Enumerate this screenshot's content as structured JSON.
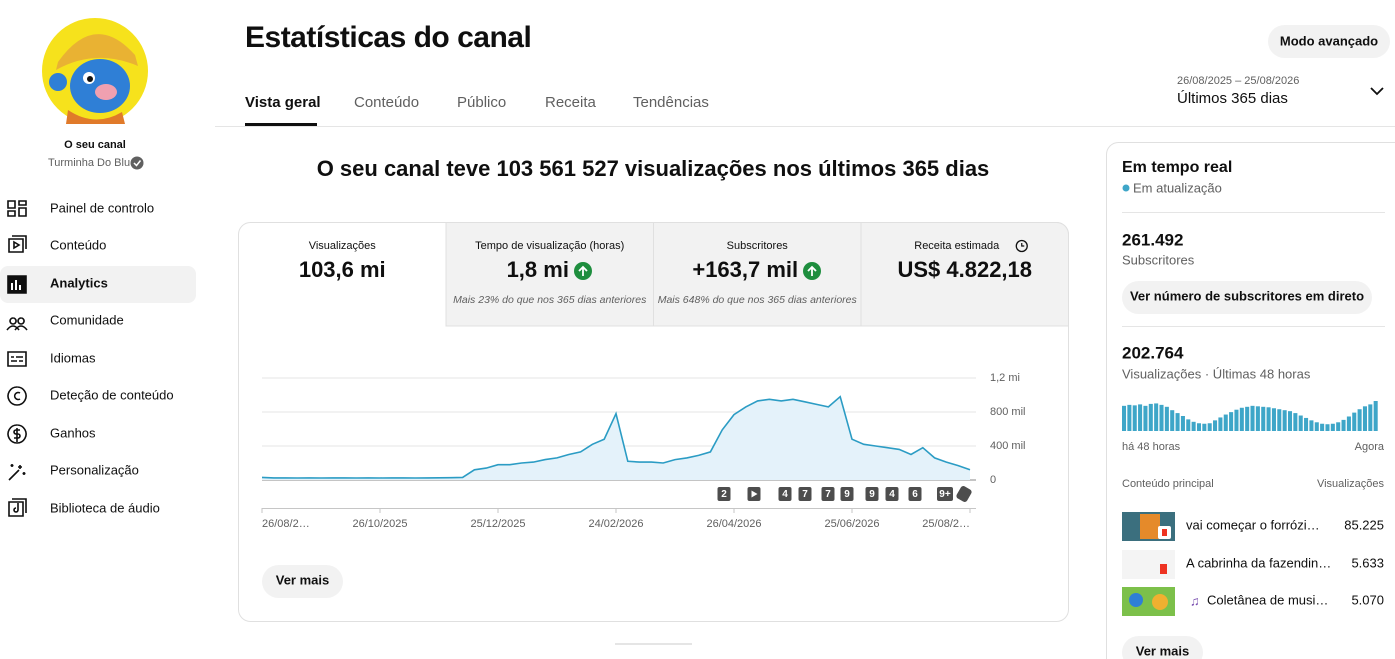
{
  "sidebar": {
    "channel_label": "O seu canal",
    "channel_name": "Turminha Do Blu",
    "nav": [
      "Painel de controlo",
      "Conteúdo",
      "Analytics",
      "Comunidade",
      "Idiomas",
      "Deteção de conteúdo",
      "Ganhos",
      "Personalização",
      "Biblioteca de áudio"
    ]
  },
  "header": {
    "title": "Estatísticas do canal",
    "tabs": [
      "Vista geral",
      "Conteúdo",
      "Público",
      "Receita",
      "Tendências"
    ],
    "advanced_button": "Modo avançado",
    "date_range": "26/08/2025 – 25/08/2026",
    "period": "Últimos 365 dias"
  },
  "summary": "O seu canal teve 103 561 527 visualizações nos últimos 365 dias",
  "metrics": [
    {
      "label": "Visualizações",
      "value": "103,6 mi"
    },
    {
      "label": "Tempo de visualização (horas)",
      "value": "1,8 mi",
      "note": "Mais 23% do que nos 365 dias anteriores"
    },
    {
      "label": "Subscritores",
      "value": "+163,7 mil",
      "note": "Mais 648% do que nos 365 dias anteriores"
    },
    {
      "label": "Receita estimada",
      "value": "US$ 4.822,18"
    }
  ],
  "chart_data": [
    {
      "type": "line",
      "color": "#2b9cc4",
      "fill": "#e4f2fa",
      "categories": [
        "26/08/2…",
        null,
        null,
        null,
        null,
        null,
        null,
        null,
        null,
        null,
        "26/10/2025",
        null,
        null,
        null,
        null,
        null,
        null,
        null,
        null,
        null,
        "25/12/2025",
        null,
        null,
        null,
        null,
        null,
        null,
        null,
        null,
        null,
        "24/02/2026",
        null,
        null,
        null,
        null,
        null,
        null,
        null,
        null,
        null,
        "26/04/2026",
        null,
        null,
        null,
        null,
        null,
        null,
        null,
        null,
        null,
        "25/06/2026",
        null,
        null,
        null,
        null,
        null,
        null,
        null,
        null,
        null,
        "25/08/2…"
      ],
      "values": [
        30000,
        25000,
        25000,
        24000,
        25000,
        24000,
        25000,
        25000,
        24000,
        25000,
        24000,
        25000,
        25000,
        24000,
        25000,
        26000,
        27000,
        30000,
        120000,
        140000,
        180000,
        180000,
        200000,
        210000,
        240000,
        260000,
        300000,
        330000,
        420000,
        480000,
        780000,
        220000,
        210000,
        210000,
        200000,
        240000,
        260000,
        290000,
        330000,
        590000,
        770000,
        860000,
        930000,
        950000,
        930000,
        950000,
        920000,
        890000,
        860000,
        980000,
        480000,
        420000,
        400000,
        380000,
        360000,
        300000,
        380000,
        260000,
        210000,
        170000,
        120000
      ],
      "ylim": [
        0,
        1200000
      ],
      "yticks": [
        0,
        {
          "value": 400000,
          "label": "400 mil"
        },
        {
          "value": 800000,
          "label": "800 mil"
        },
        {
          "value": 1200000,
          "label": "1,2 mi"
        }
      ],
      "grid": true,
      "markers": [
        "2",
        "4",
        "7",
        "7",
        "9",
        "9",
        "4",
        "6",
        "9+"
      ]
    },
    {
      "type": "bar",
      "color": "#3ea6c8",
      "values": [
        5200,
        5400,
        5300,
        5500,
        5200,
        5600,
        5700,
        5400,
        5000,
        4300,
        3700,
        3100,
        2400,
        1900,
        1600,
        1500,
        1600,
        2200,
        2800,
        3400,
        3900,
        4400,
        4800,
        5000,
        5200,
        5100,
        5000,
        4900,
        4700,
        4500,
        4300,
        4100,
        3700,
        3200,
        2700,
        2200,
        1800,
        1500,
        1400,
        1500,
        1800,
        2300,
        3000,
        3800,
        4500,
        5100,
        5500,
        6200
      ],
      "start_label": "há 48 horas",
      "end_label": "Agora"
    }
  ],
  "see_more": "Ver mais",
  "realtime": {
    "title": "Em tempo real",
    "status": "Em atualização",
    "subscribers": {
      "value": "261.492",
      "label": "Subscritores"
    },
    "subscribers_button": "Ver número de subscritores em direto",
    "views": {
      "value": "202.764",
      "label": "Visualizações · Últimas 48 horas"
    },
    "top_content": {
      "header": "Conteúdo principal",
      "column": "Visualizações",
      "items": [
        {
          "title": "vai começar o forrózi…",
          "views": "85.225"
        },
        {
          "title": "A cabrinha da fazendin…",
          "views": "5.633"
        },
        {
          "title": "Coletânea de musi…",
          "views": "5.070"
        }
      ]
    },
    "see_more": "Ver mais"
  }
}
